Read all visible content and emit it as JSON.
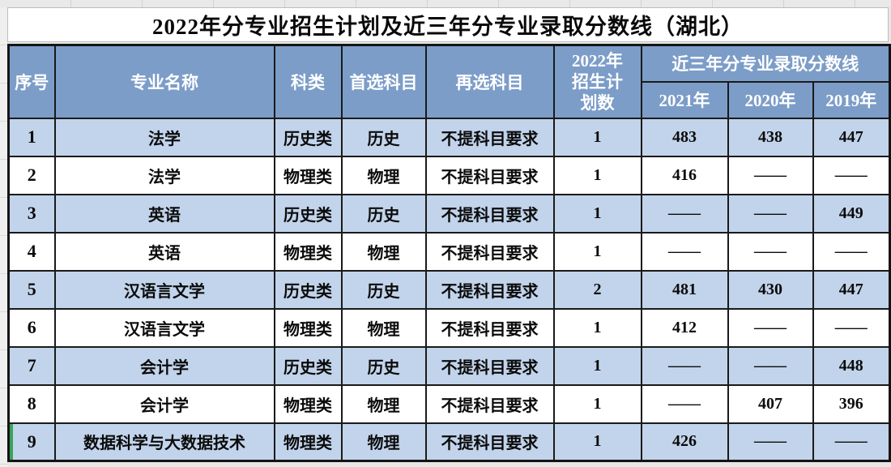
{
  "title": "2022年分专业招生计划及近三年分专业录取分数线（湖北）",
  "table": {
    "headers": {
      "col_no": "序号",
      "col_major": "专业名称",
      "col_category": "科类",
      "col_first_subject": "首选科目",
      "col_second_subject": "再选科目",
      "col_plan_2022": "2022年\n招生计\n划数",
      "col_recent_scores": "近三年分专业录取分数线",
      "col_2021": "2021年",
      "col_2020": "2020年",
      "col_2019": "2019年"
    },
    "rows": [
      {
        "no": "1",
        "major": "法学",
        "category": "历史类",
        "first_subject": "历史",
        "second_subject": "不提科目要求",
        "plan_2022": "1",
        "score_2021": "483",
        "score_2020": "438",
        "score_2019": "447",
        "selected": false
      },
      {
        "no": "2",
        "major": "法学",
        "category": "物理类",
        "first_subject": "物理",
        "second_subject": "不提科目要求",
        "plan_2022": "1",
        "score_2021": "416",
        "score_2020": "——",
        "score_2019": "——",
        "selected": false
      },
      {
        "no": "3",
        "major": "英语",
        "category": "历史类",
        "first_subject": "历史",
        "second_subject": "不提科目要求",
        "plan_2022": "1",
        "score_2021": "——",
        "score_2020": "——",
        "score_2019": "449",
        "selected": false
      },
      {
        "no": "4",
        "major": "英语",
        "category": "物理类",
        "first_subject": "物理",
        "second_subject": "不提科目要求",
        "plan_2022": "1",
        "score_2021": "——",
        "score_2020": "——",
        "score_2019": "——",
        "selected": false
      },
      {
        "no": "5",
        "major": "汉语言文学",
        "category": "历史类",
        "first_subject": "历史",
        "second_subject": "不提科目要求",
        "plan_2022": "2",
        "score_2021": "481",
        "score_2020": "430",
        "score_2019": "447",
        "selected": false
      },
      {
        "no": "6",
        "major": "汉语言文学",
        "category": "物理类",
        "first_subject": "物理",
        "second_subject": "不提科目要求",
        "plan_2022": "1",
        "score_2021": "412",
        "score_2020": "——",
        "score_2019": "——",
        "selected": false
      },
      {
        "no": "7",
        "major": "会计学",
        "category": "历史类",
        "first_subject": "历史",
        "second_subject": "不提科目要求",
        "plan_2022": "1",
        "score_2021": "——",
        "score_2020": "——",
        "score_2019": "448",
        "selected": false
      },
      {
        "no": "8",
        "major": "会计学",
        "category": "物理类",
        "first_subject": "物理",
        "second_subject": "不提科目要求",
        "plan_2022": "1",
        "score_2021": "——",
        "score_2020": "407",
        "score_2019": "396",
        "selected": false
      },
      {
        "no": "9",
        "major": "数据科学与大数据技术",
        "category": "物理类",
        "first_subject": "物理",
        "second_subject": "不提科目要求",
        "plan_2022": "1",
        "score_2021": "426",
        "score_2020": "——",
        "score_2019": "——",
        "selected": true
      }
    ]
  },
  "colors": {
    "header_bg": "#7c9dc8",
    "row_alt_bg": "#c2d4eb",
    "row_bg": "#ffffff",
    "border": "#1a1a1a",
    "selection_green": "#3aa35a",
    "background": "#e7e7e7"
  }
}
